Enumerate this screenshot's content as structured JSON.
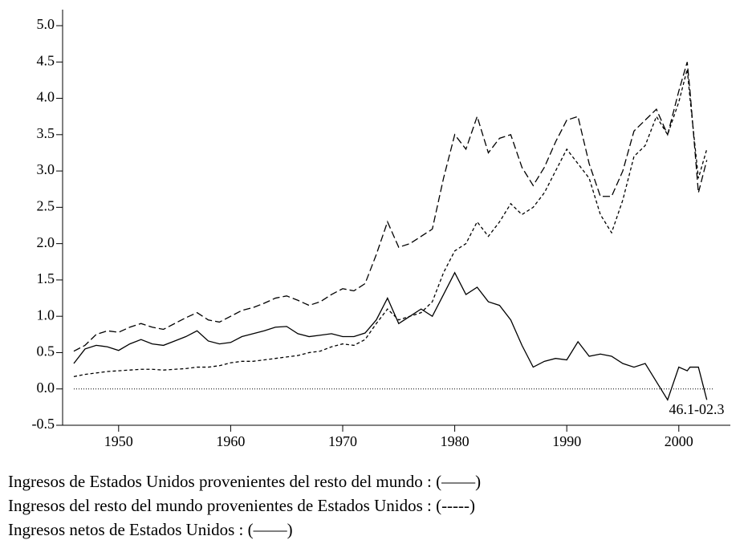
{
  "chart_data": {
    "type": "line",
    "annotation": "46.1-02.3",
    "x": [
      1946,
      1947,
      1948,
      1949,
      1950,
      1951,
      1952,
      1953,
      1954,
      1955,
      1956,
      1957,
      1958,
      1959,
      1960,
      1961,
      1962,
      1963,
      1964,
      1965,
      1966,
      1967,
      1968,
      1969,
      1970,
      1971,
      1972,
      1973,
      1974,
      1975,
      1976,
      1977,
      1978,
      1979,
      1980,
      1981,
      1982,
      1983,
      1984,
      1985,
      1986,
      1987,
      1988,
      1989,
      1990,
      1991,
      1992,
      1993,
      1994,
      1995,
      1996,
      1997,
      1998,
      1999,
      2000,
      2000.75,
      2001,
      2001.75,
      2002.5
    ],
    "series": [
      {
        "name": "Ingresos de Estados Unidos provenientes del resto del mundo : (——)",
        "color": "#000000",
        "linestyle": "long-dash",
        "values": [
          0.52,
          0.6,
          0.75,
          0.8,
          0.78,
          0.85,
          0.9,
          0.85,
          0.82,
          0.9,
          0.98,
          1.05,
          0.95,
          0.92,
          1.0,
          1.08,
          1.12,
          1.18,
          1.25,
          1.28,
          1.22,
          1.15,
          1.2,
          1.3,
          1.38,
          1.35,
          1.45,
          1.85,
          2.3,
          1.95,
          2.0,
          2.1,
          2.2,
          2.9,
          3.5,
          3.3,
          3.75,
          3.25,
          3.45,
          3.5,
          3.05,
          2.8,
          3.05,
          3.4,
          3.7,
          3.75,
          3.1,
          2.65,
          2.65,
          3.0,
          3.55,
          3.7,
          3.85,
          3.5,
          4.1,
          4.5,
          4.1,
          2.7,
          3.15
        ]
      },
      {
        "name": "Ingresos del resto del mundo provenientes de Estados Unidos : (-----)",
        "color": "#000000",
        "linestyle": "short-dash",
        "values": [
          0.17,
          0.2,
          0.22,
          0.24,
          0.25,
          0.26,
          0.27,
          0.27,
          0.26,
          0.27,
          0.28,
          0.3,
          0.3,
          0.32,
          0.36,
          0.38,
          0.38,
          0.4,
          0.42,
          0.44,
          0.46,
          0.5,
          0.52,
          0.58,
          0.62,
          0.6,
          0.68,
          0.9,
          1.1,
          0.95,
          1.0,
          1.05,
          1.2,
          1.6,
          1.9,
          2.0,
          2.3,
          2.1,
          2.3,
          2.55,
          2.4,
          2.5,
          2.7,
          3.0,
          3.3,
          3.1,
          2.9,
          2.4,
          2.15,
          2.6,
          3.2,
          3.35,
          3.75,
          3.5,
          3.95,
          4.4,
          4.0,
          2.9,
          3.3
        ]
      },
      {
        "name": "Ingresos netos de Estados Unidos : (——)",
        "color": "#000000",
        "linestyle": "solid",
        "values": [
          0.35,
          0.55,
          0.6,
          0.58,
          0.53,
          0.62,
          0.68,
          0.62,
          0.6,
          0.66,
          0.72,
          0.8,
          0.66,
          0.62,
          0.64,
          0.72,
          0.76,
          0.8,
          0.85,
          0.86,
          0.76,
          0.72,
          0.74,
          0.76,
          0.72,
          0.72,
          0.77,
          0.95,
          1.25,
          0.9,
          1.0,
          1.1,
          1.0,
          1.3,
          1.6,
          1.3,
          1.4,
          1.2,
          1.15,
          0.95,
          0.6,
          0.3,
          0.38,
          0.42,
          0.4,
          0.65,
          0.45,
          0.48,
          0.45,
          0.35,
          0.3,
          0.35,
          0.1,
          -0.15,
          0.3,
          0.25,
          0.3,
          0.3,
          -0.15
        ]
      }
    ],
    "xlim": [
      1945,
      2004.6
    ],
    "ylim": [
      -0.5,
      5.0
    ],
    "xticks": [
      1950,
      1960,
      1970,
      1980,
      1990,
      2000
    ],
    "yticks": [
      {
        "value": -0.5,
        "label": "-0.5"
      },
      {
        "value": 0,
        "label": "0.0"
      },
      {
        "value": 0.5,
        "label": "0.5"
      },
      {
        "value": 1,
        "label": "1.0"
      },
      {
        "value": 1.5,
        "label": "1.5"
      },
      {
        "value": 2,
        "label": "2.0"
      },
      {
        "value": 2.5,
        "label": "2.5"
      },
      {
        "value": 3,
        "label": "3.0"
      },
      {
        "value": 3.5,
        "label": "3.5"
      },
      {
        "value": 4,
        "label": "4.0"
      },
      {
        "value": 4.5,
        "label": "4.5"
      },
      {
        "value": 5,
        "label": "5.0"
      }
    ],
    "zero_line": true
  }
}
